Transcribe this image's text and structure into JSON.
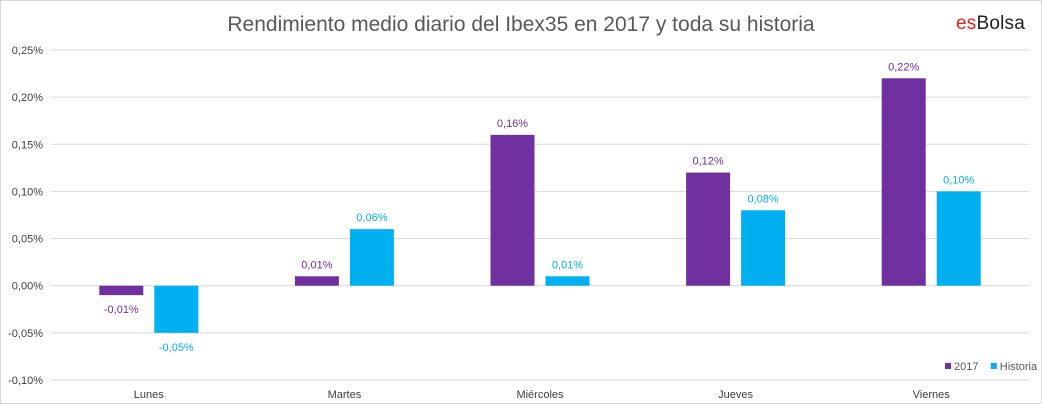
{
  "chart_data": {
    "type": "bar",
    "title": "Rendimiento medio diario del Ibex35 en 2017 y toda su historia",
    "categories": [
      "Lunes",
      "Martes",
      "Miércoles",
      "Jueves",
      "Viernes"
    ],
    "series": [
      {
        "name": "2017",
        "color": "#7030a0",
        "values": [
          -0.01,
          0.01,
          0.16,
          0.12,
          0.22
        ],
        "labels": [
          "-0,01%",
          "0,01%",
          "0,16%",
          "0,12%",
          "0,22%"
        ]
      },
      {
        "name": "Historia",
        "color": "#00b0f0",
        "values": [
          -0.05,
          0.06,
          0.01,
          0.08,
          0.1
        ],
        "labels": [
          "-0,05%",
          "0,06%",
          "0,01%",
          "0,08%",
          "0,10%"
        ]
      }
    ],
    "ylim": [
      -0.1,
      0.25
    ],
    "yticks": [
      0.25,
      0.2,
      0.15,
      0.1,
      0.05,
      0.0,
      -0.05,
      -0.1
    ],
    "ytick_labels": [
      "0,25%",
      "0,20%",
      "0,15%",
      "0,10%",
      "0,05%",
      "0,00%",
      "-0,05%",
      "-0,10%"
    ],
    "grid": true,
    "legend_position": "bottom-right"
  },
  "logo": {
    "prefix": "es",
    "suffix": "Bolsa"
  }
}
